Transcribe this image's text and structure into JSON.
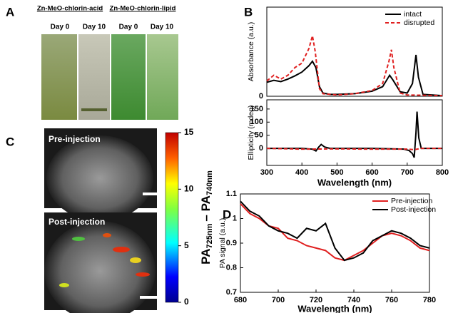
{
  "panel_a": {
    "letter": "A",
    "groups": [
      {
        "name": "Zn-MeO-chlorin-acid",
        "days": [
          "Day 0",
          "Day 10"
        ]
      },
      {
        "name": "Zn-MeO-chlorin-lipid",
        "days": [
          "Day 0",
          "Day 10"
        ]
      }
    ]
  },
  "panel_c": {
    "letter": "C",
    "images": [
      "Pre-injection",
      "Post-injection"
    ],
    "colorbar": {
      "lim": [
        0,
        15
      ],
      "ticks": [
        0,
        5,
        10,
        15
      ],
      "label_parts": [
        "PA",
        "725nm",
        "– PA",
        "740nm"
      ]
    }
  },
  "chart_data": [
    {
      "type": "line",
      "letter": "B",
      "ylabel": "Absorbance (a.u.)",
      "xlim": [
        300,
        800
      ],
      "ylim": [
        0,
        1.4
      ],
      "yticks": [
        0
      ],
      "legend": "upper right",
      "series": [
        {
          "name": "intact",
          "color": "#000000",
          "style": "solid",
          "x": [
            300,
            320,
            340,
            360,
            380,
            400,
            420,
            430,
            440,
            450,
            460,
            480,
            500,
            550,
            600,
            630,
            650,
            660,
            680,
            700,
            715,
            725,
            732,
            745,
            800
          ],
          "values": [
            0.22,
            0.25,
            0.23,
            0.27,
            0.32,
            0.38,
            0.48,
            0.55,
            0.45,
            0.15,
            0.05,
            0.03,
            0.03,
            0.04,
            0.08,
            0.15,
            0.33,
            0.25,
            0.07,
            0.05,
            0.2,
            0.65,
            0.3,
            0.03,
            0.01
          ]
        },
        {
          "name": "disrupted",
          "color": "#e02020",
          "style": "dashed",
          "x": [
            300,
            320,
            340,
            360,
            380,
            400,
            420,
            430,
            438,
            450,
            460,
            500,
            550,
            600,
            630,
            648,
            655,
            662,
            680,
            700,
            800
          ],
          "values": [
            0.24,
            0.33,
            0.27,
            0.33,
            0.45,
            0.52,
            0.75,
            0.95,
            0.7,
            0.12,
            0.04,
            0.02,
            0.04,
            0.09,
            0.2,
            0.55,
            0.73,
            0.45,
            0.05,
            0.02,
            0.01
          ]
        }
      ]
    },
    {
      "type": "line",
      "xlabel": "Wavelength (nm)",
      "ylabel": "Ellipticity (mdeg)",
      "xlim": [
        300,
        800
      ],
      "ylim": [
        -65,
        185
      ],
      "xticks": [
        300,
        400,
        500,
        600,
        700,
        800
      ],
      "yticks": [
        0,
        50,
        100,
        150
      ],
      "series": [
        {
          "color": "#000000",
          "style": "solid",
          "x": [
            300,
            400,
            430,
            440,
            448,
            455,
            465,
            480,
            600,
            690,
            705,
            715,
            720,
            725,
            728,
            733,
            740,
            800
          ],
          "values": [
            0,
            0,
            -3,
            -10,
            5,
            15,
            5,
            0,
            0,
            -3,
            -8,
            -20,
            -35,
            60,
            140,
            40,
            0,
            0
          ]
        },
        {
          "color": "#e02020",
          "style": "dashed",
          "x": [
            300,
            400,
            500,
            600,
            700,
            720,
            740,
            800
          ],
          "values": [
            0,
            -3,
            -2,
            -3,
            -3,
            -5,
            0,
            0
          ]
        }
      ]
    },
    {
      "type": "line",
      "letter": "D",
      "xlabel": "Wavelength (nm)",
      "ylabel": "PA signal (a.u.)",
      "xlim": [
        680,
        780
      ],
      "ylim": [
        0.7,
        1.1
      ],
      "xticks": [
        680,
        700,
        720,
        740,
        760,
        780
      ],
      "yticks": [
        0.7,
        0.8,
        0.9,
        1,
        1.1
      ],
      "legend": "upper right",
      "series": [
        {
          "name": "Pre-injection",
          "color": "#e02020",
          "style": "solid",
          "x": [
            680,
            685,
            690,
            695,
            700,
            705,
            710,
            715,
            720,
            725,
            730,
            735,
            740,
            745,
            750,
            755,
            760,
            765,
            770,
            775,
            780
          ],
          "values": [
            1.06,
            1.02,
            1.0,
            0.97,
            0.96,
            0.92,
            0.91,
            0.89,
            0.88,
            0.87,
            0.84,
            0.83,
            0.85,
            0.87,
            0.9,
            0.93,
            0.94,
            0.93,
            0.91,
            0.88,
            0.87
          ]
        },
        {
          "name": "Post-injection",
          "color": "#000000",
          "style": "solid",
          "x": [
            680,
            685,
            690,
            695,
            700,
            705,
            710,
            715,
            720,
            725,
            730,
            735,
            740,
            745,
            750,
            755,
            760,
            765,
            770,
            775,
            780
          ],
          "values": [
            1.07,
            1.03,
            1.01,
            0.97,
            0.95,
            0.94,
            0.92,
            0.96,
            0.95,
            0.98,
            0.88,
            0.83,
            0.84,
            0.86,
            0.91,
            0.93,
            0.95,
            0.94,
            0.92,
            0.89,
            0.88
          ]
        }
      ]
    }
  ]
}
